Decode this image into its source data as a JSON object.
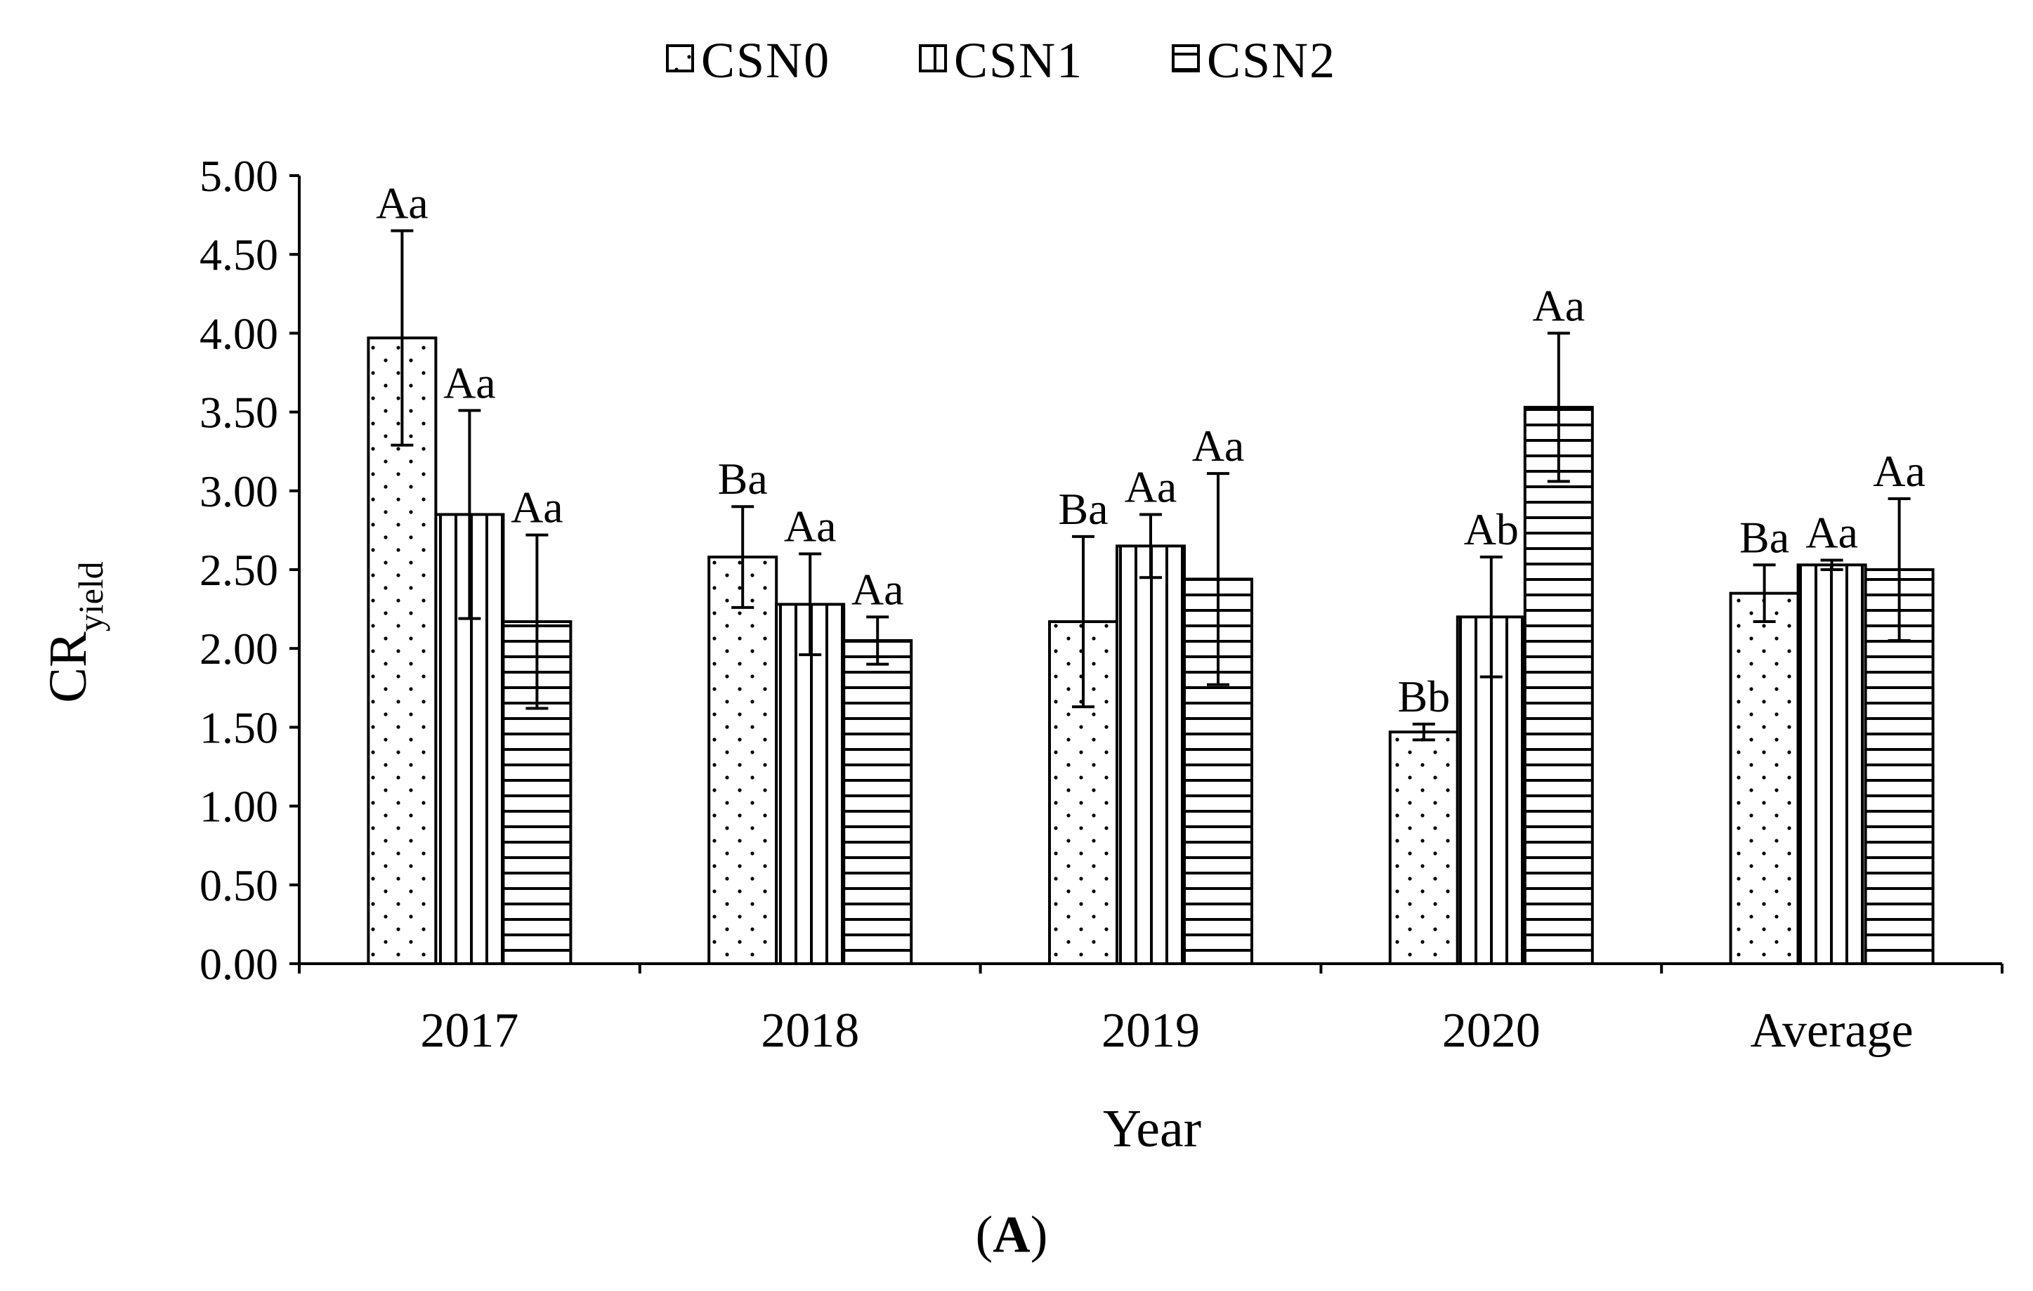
{
  "chart_data": {
    "type": "bar",
    "title": "",
    "xlabel": "Year",
    "ylabel_main": "CR",
    "ylabel_sub": "yield",
    "categories": [
      "2017",
      "2018",
      "2019",
      "2020",
      "Average"
    ],
    "ylim": [
      0,
      5
    ],
    "yticks": [
      "0.00",
      "0.50",
      "1.00",
      "1.50",
      "2.00",
      "2.50",
      "3.00",
      "3.50",
      "4.00",
      "4.50",
      "5.00"
    ],
    "legend_position": "top-center",
    "series": [
      {
        "name": "CSN0",
        "pattern": "dots",
        "values": [
          3.97,
          2.58,
          2.17,
          1.47,
          2.35
        ],
        "errors": [
          0.68,
          0.32,
          0.54,
          0.05,
          0.18
        ],
        "labels": [
          "Aa",
          "Ba",
          "Ba",
          "Bb",
          "Ba"
        ]
      },
      {
        "name": "CSN1",
        "pattern": "vertical",
        "values": [
          2.85,
          2.28,
          2.65,
          2.2,
          2.53
        ],
        "errors": [
          0.66,
          0.32,
          0.2,
          0.38,
          0.03
        ],
        "labels": [
          "Aa",
          "Aa",
          "Aa",
          "Ab",
          "Aa"
        ]
      },
      {
        "name": "CSN2",
        "pattern": "horizontal",
        "values": [
          2.17,
          2.05,
          2.44,
          3.53,
          2.5
        ],
        "errors": [
          0.55,
          0.15,
          0.67,
          0.47,
          0.45
        ],
        "labels": [
          "Aa",
          "Aa",
          "Aa",
          "Aa",
          "Aa"
        ]
      }
    ],
    "panel_label": "A",
    "panel_label_open": "(",
    "panel_label_close": ")"
  },
  "colors": {
    "ink": "#000000",
    "fill": "#ffffff"
  }
}
